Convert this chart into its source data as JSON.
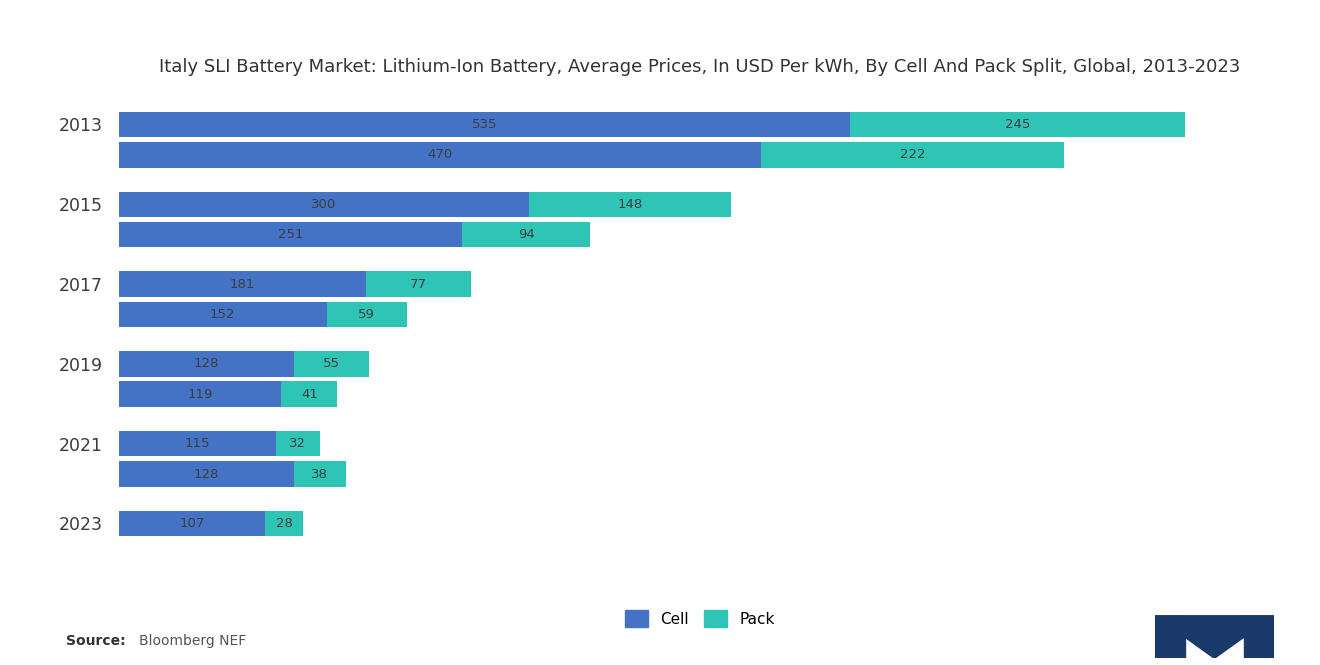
{
  "title": "Italy SLI Battery Market: Lithium-Ion Battery, Average Prices, In USD Per kWh, By Cell And Pack Split, Global, 2013-2023",
  "years": [
    2013,
    2015,
    2017,
    2019,
    2021,
    2023
  ],
  "row1_cell": [
    535,
    300,
    181,
    128,
    115,
    107
  ],
  "row1_pack": [
    245,
    148,
    77,
    55,
    32,
    28
  ],
  "row2_cell": [
    470,
    251,
    152,
    119,
    128,
    null
  ],
  "row2_pack": [
    222,
    94,
    59,
    41,
    38,
    null
  ],
  "cell_color": "#4472C4",
  "pack_color": "#2EC4B6",
  "bg_color": "#FFFFFF",
  "text_color": "#3d3d3d",
  "bar_height": 0.32,
  "xlim": [
    0,
    850
  ],
  "legend_cell": "Cell",
  "legend_pack": "Pack"
}
